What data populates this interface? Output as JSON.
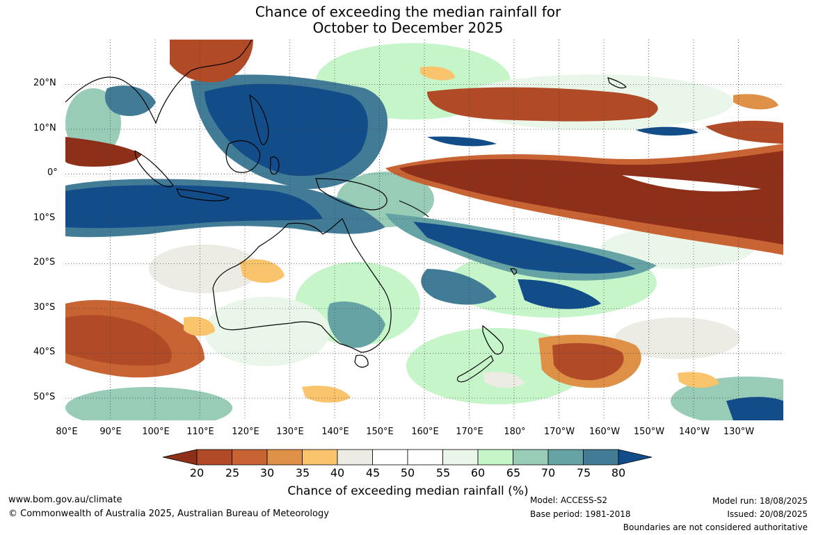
{
  "title": {
    "line1": "Chance of exceeding the median rainfall for",
    "line2": "October to December 2025"
  },
  "map": {
    "lat_labels": [
      "20°N",
      "10°N",
      "0°",
      "10°S",
      "20°S",
      "30°S",
      "40°S",
      "50°S"
    ],
    "lat_values": [
      20,
      10,
      0,
      -10,
      -20,
      -30,
      -40,
      -50
    ],
    "lat_range": [
      -55,
      30
    ],
    "lon_labels": [
      "80°E",
      "90°E",
      "100°E",
      "110°E",
      "120°E",
      "130°E",
      "140°E",
      "150°E",
      "160°E",
      "170°E",
      "180°",
      "170°W",
      "160°W",
      "150°W",
      "140°W",
      "130°W"
    ],
    "lon_values": [
      80,
      90,
      100,
      110,
      120,
      130,
      140,
      150,
      160,
      170,
      180,
      190,
      200,
      210,
      220,
      230
    ],
    "lon_range": [
      80,
      240
    ],
    "grid": "dotted"
  },
  "legend": {
    "ticks": [
      "20",
      "25",
      "30",
      "35",
      "40",
      "45",
      "50",
      "55",
      "60",
      "65",
      "70",
      "75",
      "80"
    ],
    "colors": [
      "#8e2f1a",
      "#b14b27",
      "#c86434",
      "#de9146",
      "#fac46c",
      "#ecebe4",
      "#ffffff",
      "#ffffff",
      "#e9f6e9",
      "#c5f5c8",
      "#98ccb7",
      "#66a3a5",
      "#427b96",
      "#124d89"
    ],
    "label": "Chance of exceeding median rainfall (%)"
  },
  "footer": {
    "website": "www.bom.gov.au/climate",
    "copyright": "© Commonwealth of Australia 2025, Australian Bureau of Meteorology",
    "model": "Model: ACCESS-S2",
    "base_period": "Base period: 1981-2018",
    "model_run": "Model run: 18/08/2025",
    "issued": "Issued: 20/08/2025",
    "disclaimer": "Boundaries are not considered authoritative"
  }
}
